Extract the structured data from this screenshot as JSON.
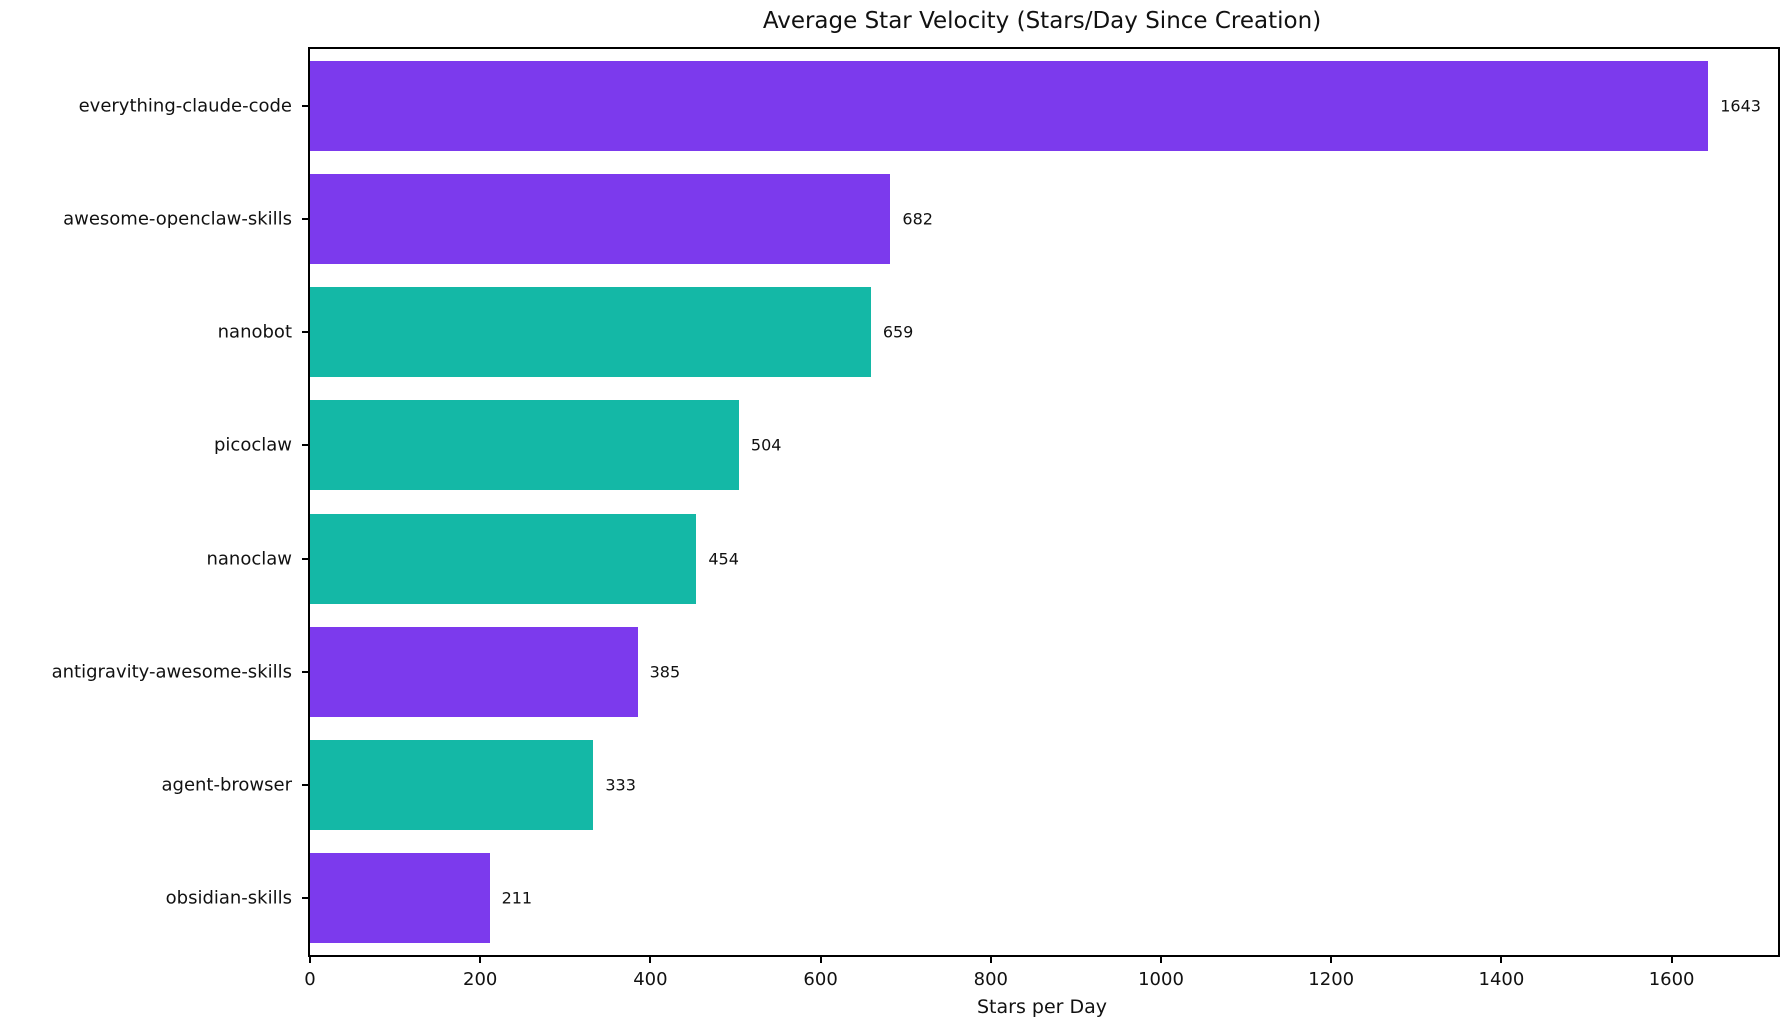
{
  "chart_data": {
    "type": "bar",
    "orientation": "horizontal",
    "title": "Average Star Velocity (Stars/Day Since Creation)",
    "xlabel": "Stars per Day",
    "ylabel": "",
    "categories": [
      "everything-claude-code",
      "awesome-openclaw-skills",
      "nanobot",
      "picoclaw",
      "nanoclaw",
      "antigravity-awesome-skills",
      "agent-browser",
      "obsidian-skills"
    ],
    "values": [
      1643,
      682,
      659,
      504,
      454,
      385,
      333,
      211
    ],
    "value_labels": [
      "1643",
      "682",
      "659",
      "504",
      "454",
      "385",
      "333",
      "211"
    ],
    "bar_colors": [
      "#7c3aed",
      "#7c3aed",
      "#14b8a6",
      "#14b8a6",
      "#14b8a6",
      "#7c3aed",
      "#14b8a6",
      "#7c3aed"
    ],
    "xlim": [
      0,
      1725
    ],
    "xticks": [
      0,
      200,
      400,
      600,
      800,
      1000,
      1200,
      1400,
      1600
    ],
    "grid": false,
    "legend": null,
    "colors": {
      "purple": "#7c3aed",
      "teal": "#14b8a6",
      "text": "#111111",
      "spine": "#000000",
      "background": "#ffffff"
    }
  }
}
